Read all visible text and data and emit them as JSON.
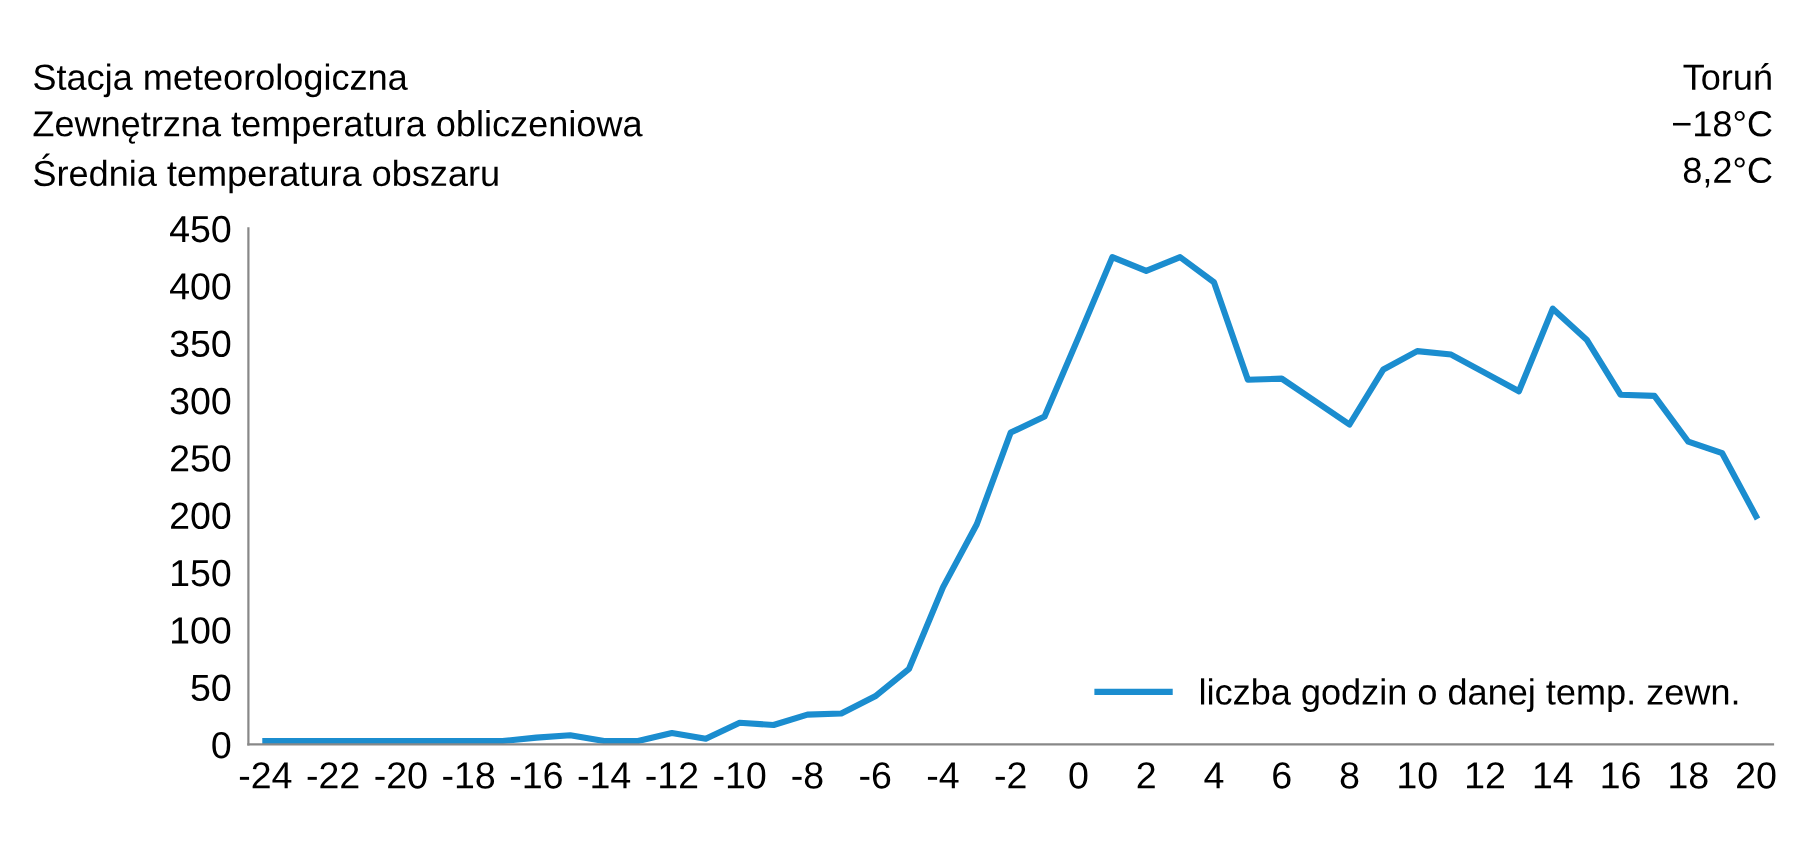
{
  "chart_data": {
    "type": "line",
    "annotations": [
      "Stacja meteorologiczna",
      "Toruń",
      "Zewnętrzna temperatura obliczeniowa",
      "−18°C",
      "Średnia temperatura obszaru",
      "8,2°C"
    ],
    "x": [
      -24,
      -23,
      -22,
      -21,
      -20,
      -19,
      -18,
      -17,
      -16,
      -15,
      -14,
      -13,
      -12,
      -11,
      -10,
      -9,
      -8,
      -7,
      -6,
      -5,
      -4,
      -3,
      -2,
      -1,
      0,
      1,
      2,
      3,
      4,
      5,
      6,
      7,
      8,
      9,
      10,
      11,
      12,
      13,
      14,
      15,
      16,
      17,
      18,
      19,
      20
    ],
    "series": [
      {
        "name": "liczba godzin o danej temp. zewn.",
        "color": "#1b8dcf",
        "values": [
          3,
          3,
          3,
          3,
          3,
          3,
          3,
          3,
          6,
          8,
          3,
          3,
          10,
          5,
          19,
          17,
          26,
          27,
          42,
          66,
          137,
          192,
          272,
          286,
          355,
          425,
          413,
          425,
          403,
          318,
          319,
          299,
          279,
          327,
          343,
          340,
          324,
          308,
          380,
          353,
          305,
          304,
          264,
          254,
          199
        ]
      }
    ],
    "xlim": [
      -24.5,
      20.5
    ],
    "xticks": [
      -24,
      -22,
      -20,
      -18,
      -16,
      -14,
      -12,
      -10,
      -8,
      -6,
      -4,
      -2,
      0,
      2,
      4,
      6,
      8,
      10,
      12,
      14,
      16,
      18,
      20
    ],
    "ylim": [
      0,
      450
    ],
    "yticks": [
      0,
      50,
      100,
      150,
      200,
      250,
      300,
      350,
      400,
      450
    ],
    "grid": false,
    "legend": "bottom right",
    "marker": "none",
    "line_style": "solid"
  }
}
